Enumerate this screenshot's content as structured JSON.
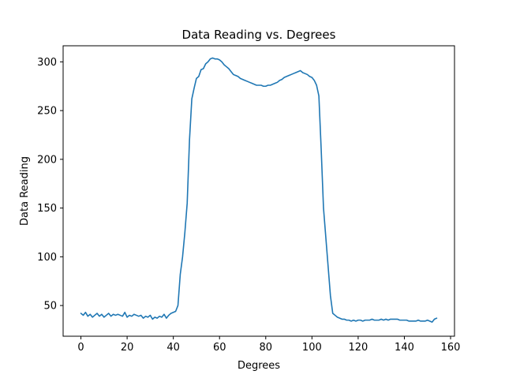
{
  "chart_data": {
    "type": "line",
    "title": "Data Reading vs. Degrees",
    "xlabel": "Degrees",
    "ylabel": "Data Reading",
    "xlim": [
      -7.7,
      161.7
    ],
    "ylim": [
      18.5,
      316.5
    ],
    "xticks": [
      0,
      20,
      40,
      60,
      80,
      100,
      120,
      140,
      160
    ],
    "yticks": [
      50,
      100,
      150,
      200,
      250,
      300
    ],
    "grid": false,
    "legend": "none",
    "line_color": "#1f77b4",
    "series": [
      {
        "x": [
          0,
          1,
          2,
          3,
          4,
          5,
          6,
          7,
          8,
          9,
          10,
          11,
          12,
          13,
          14,
          15,
          16,
          17,
          18,
          19,
          20,
          21,
          22,
          23,
          24,
          25,
          26,
          27,
          28,
          29,
          30,
          31,
          32,
          33,
          34,
          35,
          36,
          37,
          38,
          39,
          40,
          41,
          42,
          43,
          44,
          45,
          46,
          47,
          48,
          49,
          50,
          51,
          52,
          53,
          54,
          55,
          56,
          57,
          58,
          59,
          60,
          61,
          62,
          63,
          64,
          65,
          66,
          67,
          68,
          69,
          70,
          71,
          72,
          73,
          74,
          75,
          76,
          77,
          78,
          79,
          80,
          81,
          82,
          83,
          84,
          85,
          86,
          87,
          88,
          89,
          90,
          91,
          92,
          93,
          94,
          95,
          96,
          97,
          98,
          99,
          100,
          101,
          102,
          103,
          104,
          105,
          106,
          107,
          108,
          109,
          110,
          111,
          112,
          113,
          114,
          115,
          116,
          117,
          118,
          119,
          120,
          121,
          122,
          123,
          124,
          125,
          126,
          127,
          128,
          129,
          130,
          131,
          132,
          133,
          134,
          135,
          136,
          137,
          138,
          139,
          140,
          141,
          142,
          143,
          144,
          145,
          146,
          147,
          148,
          149,
          150,
          151,
          152,
          153,
          154
        ],
        "y": [
          42,
          40,
          43,
          39,
          41,
          38,
          40,
          42,
          39,
          41,
          38,
          40,
          42,
          39,
          41,
          40,
          41,
          40,
          39,
          43,
          38,
          40,
          39,
          41,
          40,
          39,
          40,
          37,
          39,
          38,
          40,
          36,
          38,
          37,
          39,
          38,
          41,
          37,
          40,
          42,
          43,
          44,
          50,
          82,
          100,
          125,
          155,
          220,
          262,
          273,
          283,
          285,
          292,
          293,
          298,
          300,
          303,
          304,
          303,
          303,
          302,
          300,
          297,
          295,
          293,
          290,
          287,
          286,
          285,
          283,
          282,
          281,
          280,
          279,
          278,
          277,
          276,
          276,
          276,
          275,
          275,
          276,
          276,
          277,
          278,
          279,
          281,
          282,
          284,
          285,
          286,
          287,
          288,
          289,
          290,
          291,
          289,
          288,
          287,
          285,
          284,
          281,
          276,
          265,
          210,
          150,
          120,
          90,
          60,
          42,
          40,
          38,
          37,
          36,
          36,
          35,
          35,
          34,
          35,
          34,
          35,
          35,
          34,
          35,
          35,
          35,
          36,
          35,
          35,
          35,
          36,
          35,
          36,
          35,
          36,
          36,
          36,
          36,
          35,
          35,
          35,
          35,
          34,
          34,
          34,
          34,
          35,
          34,
          34,
          34,
          35,
          34,
          33,
          36,
          37
        ]
      }
    ]
  }
}
